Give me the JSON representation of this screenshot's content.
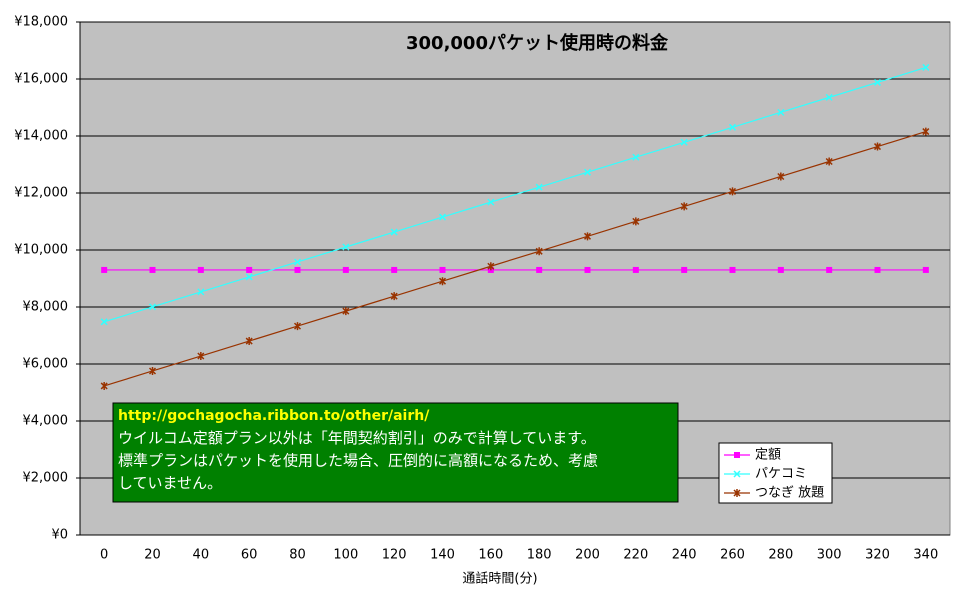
{
  "chart_data": {
    "type": "line",
    "title": "300,000パケット使用時の料金",
    "x_label": "通話時間(分)",
    "x": [
      0,
      20,
      40,
      60,
      80,
      100,
      120,
      140,
      160,
      180,
      200,
      220,
      240,
      260,
      280,
      300,
      320,
      340
    ],
    "xlim": [
      -10,
      350
    ],
    "ylim": [
      0,
      18000
    ],
    "yticks": [
      {
        "value": 0,
        "label": "¥0"
      },
      {
        "value": 2000,
        "label": "¥2,000"
      },
      {
        "value": 4000,
        "label": "¥4,000"
      },
      {
        "value": 6000,
        "label": "¥6,000"
      },
      {
        "value": 8000,
        "label": "¥8,000"
      },
      {
        "value": 10000,
        "label": "¥10,000"
      },
      {
        "value": 12000,
        "label": "¥12,000"
      },
      {
        "value": 14000,
        "label": "¥14,000"
      },
      {
        "value": 16000,
        "label": "¥16,000"
      },
      {
        "value": 18000,
        "label": "¥18,000"
      }
    ],
    "grid": true,
    "series": [
      {
        "name": "定額",
        "color": "#ff00ff",
        "marker": "square",
        "values": [
          9300,
          9300,
          9300,
          9300,
          9300,
          9300,
          9300,
          9300,
          9300,
          9300,
          9300,
          9300,
          9300,
          9300,
          9300,
          9300,
          9300,
          9300
        ]
      },
      {
        "name": "パケコミ",
        "color": "#33ffff",
        "marker": "x",
        "values": [
          7480,
          8005,
          8530,
          9055,
          9580,
          10105,
          10630,
          11155,
          11680,
          12205,
          12730,
          13255,
          13780,
          14305,
          14830,
          15355,
          15880,
          16405
        ]
      },
      {
        "name": "つなぎ 放題",
        "color": "#993300",
        "marker": "star",
        "values": [
          5230,
          5755,
          6280,
          6805,
          7330,
          7855,
          8380,
          8905,
          9430,
          9955,
          10480,
          11005,
          11530,
          12055,
          12580,
          13105,
          13630,
          14155
        ]
      }
    ],
    "annotations": [
      "http://gochagocha.ribbon.to/other/airh/",
      "ウイルコム定額プラン以外は「年間契約割引」のみで計算しています。",
      "標準プランはパケットを使用した場合、圧倒的に高額になるため、考慮",
      "していません。"
    ]
  }
}
